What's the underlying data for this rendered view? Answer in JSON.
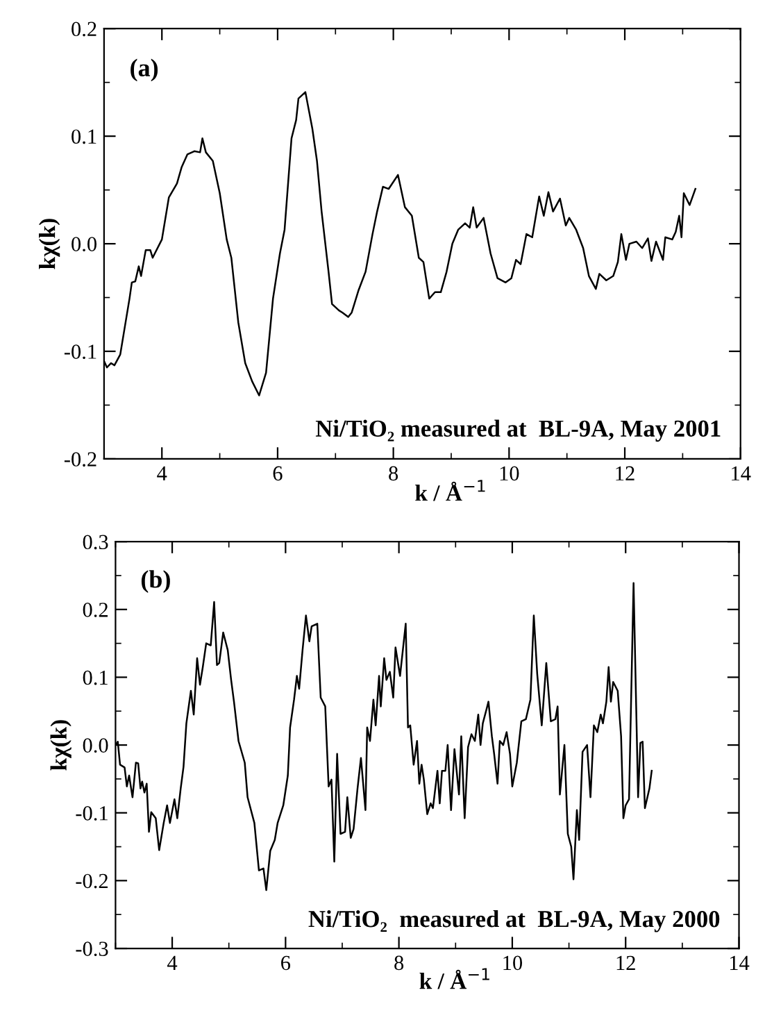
{
  "chart_data": [
    {
      "type": "line",
      "xlabel": "k / Å$^{−1}$",
      "ylabel": "kχ(k)",
      "annotations": [
        "(a)",
        "Ni/TiO₂ measured at  BL-9A, May 2001"
      ],
      "xlim": [
        3,
        14
      ],
      "xticks": [
        {
          "value": 4,
          "label": "4"
        },
        {
          "value": 6,
          "label": "6"
        },
        {
          "value": 8,
          "label": "8"
        },
        {
          "value": 10,
          "label": "10"
        },
        {
          "value": 12,
          "label": "12"
        },
        {
          "value": 14,
          "label": "14"
        }
      ],
      "ylim": [
        -0.2,
        0.2
      ],
      "yticks": [
        {
          "value": -0.2,
          "label": "-0.2"
        },
        {
          "value": -0.1,
          "label": "-0.1"
        },
        {
          "value": 0,
          "label": "0.0"
        },
        {
          "value": 0.1,
          "label": "0.1"
        },
        {
          "value": 0.2,
          "label": "0.2"
        }
      ],
      "series": [
        {
          "color": "#000000",
          "x": [
            3.0,
            3.05,
            3.12,
            3.18,
            3.28,
            3.36,
            3.44,
            3.48,
            3.54,
            3.6,
            3.64,
            3.72,
            3.8,
            3.84,
            4.0,
            4.12,
            4.26,
            4.34,
            4.44,
            4.56,
            4.66,
            4.7,
            4.76,
            4.88,
            5.0,
            5.12,
            5.2,
            5.32,
            5.44,
            5.56,
            5.68,
            5.8,
            5.92,
            6.04,
            6.12,
            6.24,
            6.32,
            6.36,
            6.48,
            6.6,
            6.68,
            6.76,
            6.88,
            6.94,
            7.06,
            7.12,
            7.22,
            7.28,
            7.4,
            7.52,
            7.64,
            7.72,
            7.82,
            7.92,
            8.08,
            8.2,
            8.32,
            8.44,
            8.52,
            8.62,
            8.72,
            8.82,
            8.92,
            9.02,
            9.12,
            9.24,
            9.32,
            9.38,
            9.44,
            9.56,
            9.68,
            9.8,
            9.94,
            10.04,
            10.12,
            10.2,
            10.3,
            10.4,
            10.52,
            10.6,
            10.68,
            10.76,
            10.88,
            10.98,
            11.04,
            11.16,
            11.28,
            11.38,
            11.5,
            11.56,
            11.68,
            11.8,
            11.88,
            11.94,
            12.02,
            12.08,
            12.2,
            12.3,
            12.4,
            12.46,
            12.54,
            12.66,
            12.7,
            12.82,
            12.88,
            12.94,
            12.98,
            13.02,
            13.12,
            13.22
          ],
          "values": [
            -0.109,
            -0.115,
            -0.111,
            -0.113,
            -0.103,
            -0.077,
            -0.051,
            -0.036,
            -0.035,
            -0.021,
            -0.03,
            -0.006,
            -0.006,
            -0.013,
            0.004,
            0.043,
            0.056,
            0.071,
            0.083,
            0.086,
            0.085,
            0.098,
            0.085,
            0.077,
            0.047,
            0.004,
            -0.013,
            -0.073,
            -0.111,
            -0.128,
            -0.141,
            -0.12,
            -0.051,
            -0.009,
            0.013,
            0.098,
            0.115,
            0.135,
            0.141,
            0.107,
            0.077,
            0.03,
            -0.026,
            -0.056,
            -0.062,
            -0.064,
            -0.068,
            -0.064,
            -0.043,
            -0.026,
            0.009,
            0.03,
            0.053,
            0.051,
            0.064,
            0.034,
            0.026,
            -0.013,
            -0.017,
            -0.051,
            -0.045,
            -0.045,
            -0.026,
            0.0,
            0.013,
            0.019,
            0.015,
            0.034,
            0.015,
            0.024,
            -0.009,
            -0.032,
            -0.036,
            -0.032,
            -0.015,
            -0.019,
            0.009,
            0.006,
            0.044,
            0.026,
            0.048,
            0.03,
            0.042,
            0.017,
            0.024,
            0.013,
            -0.004,
            -0.03,
            -0.042,
            -0.028,
            -0.034,
            -0.03,
            -0.017,
            0.009,
            -0.015,
            0.0,
            0.002,
            -0.004,
            0.005,
            -0.016,
            0.002,
            -0.015,
            0.006,
            0.004,
            0.011,
            0.026,
            0.006,
            0.047,
            0.036,
            0.051
          ]
        }
      ]
    },
    {
      "type": "line",
      "xlabel": "k / Å$^{−1}$",
      "ylabel": "kχ(k)",
      "annotations": [
        "(b)",
        "Ni/TiO₂  measured at  BL-9A, May 2000"
      ],
      "xlim": [
        3,
        14
      ],
      "xticks": [
        {
          "value": 4,
          "label": "4"
        },
        {
          "value": 6,
          "label": "6"
        },
        {
          "value": 8,
          "label": "8"
        },
        {
          "value": 10,
          "label": "10"
        },
        {
          "value": 12,
          "label": "12"
        },
        {
          "value": 14,
          "label": "14"
        }
      ],
      "ylim": [
        -0.3,
        0.3
      ],
      "yticks": [
        {
          "value": -0.3,
          "label": "-0.3"
        },
        {
          "value": -0.2,
          "label": "-0.2"
        },
        {
          "value": -0.1,
          "label": "-0.1"
        },
        {
          "value": 0,
          "label": "0.0"
        },
        {
          "value": 0.1,
          "label": "0.1"
        },
        {
          "value": 0.2,
          "label": "0.2"
        },
        {
          "value": 0.3,
          "label": "0.3"
        }
      ],
      "series": [
        {
          "color": "#000000",
          "x": [
            3.0,
            3.04,
            3.08,
            3.16,
            3.2,
            3.24,
            3.3,
            3.36,
            3.4,
            3.44,
            3.47,
            3.51,
            3.55,
            3.59,
            3.63,
            3.71,
            3.77,
            3.85,
            3.91,
            3.96,
            4.04,
            4.09,
            4.15,
            4.2,
            4.25,
            4.33,
            4.38,
            4.44,
            4.49,
            4.54,
            4.6,
            4.68,
            4.74,
            4.79,
            4.83,
            4.9,
            4.98,
            5.04,
            5.09,
            5.17,
            5.28,
            5.33,
            5.45,
            5.53,
            5.61,
            5.66,
            5.73,
            5.81,
            5.86,
            5.91,
            5.96,
            6.04,
            6.08,
            6.15,
            6.2,
            6.24,
            6.3,
            6.36,
            6.42,
            6.46,
            6.56,
            6.62,
            6.7,
            6.76,
            6.81,
            6.86,
            6.91,
            6.97,
            7.05,
            7.09,
            7.15,
            7.2,
            7.27,
            7.33,
            7.41,
            7.44,
            7.49,
            7.55,
            7.59,
            7.65,
            7.68,
            7.74,
            7.78,
            7.84,
            7.9,
            7.94,
            8.02,
            8.12,
            8.16,
            8.2,
            8.26,
            8.32,
            8.36,
            8.4,
            8.44,
            8.5,
            8.56,
            8.6,
            8.68,
            8.72,
            8.76,
            8.82,
            8.86,
            8.92,
            8.98,
            9.06,
            9.1,
            9.16,
            9.22,
            9.28,
            9.34,
            9.4,
            9.44,
            9.48,
            9.54,
            9.58,
            9.64,
            9.68,
            9.74,
            9.78,
            9.84,
            9.9,
            9.96,
            10.0,
            10.08,
            10.16,
            10.24,
            10.32,
            10.38,
            10.44,
            10.52,
            10.6,
            10.68,
            10.76,
            10.8,
            10.84,
            10.92,
            10.98,
            11.04,
            11.08,
            11.14,
            11.18,
            11.24,
            11.32,
            11.38,
            11.44,
            11.5,
            11.56,
            11.6,
            11.66,
            11.7,
            11.74,
            11.78,
            11.86,
            11.92,
            11.96,
            12.0,
            12.06,
            12.14,
            12.22,
            12.26,
            12.3,
            12.34,
            12.42,
            12.46
          ],
          "values": [
            0.0,
            0.005,
            -0.029,
            -0.033,
            -0.061,
            -0.045,
            -0.077,
            -0.026,
            -0.027,
            -0.064,
            -0.054,
            -0.07,
            -0.057,
            -0.128,
            -0.099,
            -0.108,
            -0.155,
            -0.115,
            -0.089,
            -0.115,
            -0.08,
            -0.108,
            -0.064,
            -0.032,
            0.032,
            0.08,
            0.045,
            0.128,
            0.089,
            0.115,
            0.15,
            0.147,
            0.211,
            0.118,
            0.121,
            0.166,
            0.14,
            0.096,
            0.064,
            0.006,
            -0.026,
            -0.077,
            -0.115,
            -0.185,
            -0.182,
            -0.214,
            -0.156,
            -0.14,
            -0.115,
            -0.102,
            -0.089,
            -0.045,
            0.026,
            0.067,
            0.102,
            0.083,
            0.14,
            0.191,
            0.153,
            0.175,
            0.179,
            0.07,
            0.057,
            -0.061,
            -0.051,
            -0.172,
            -0.013,
            -0.131,
            -0.128,
            -0.077,
            -0.137,
            -0.124,
            -0.064,
            -0.019,
            -0.096,
            0.026,
            0.006,
            0.067,
            0.029,
            0.102,
            0.057,
            0.128,
            0.096,
            0.108,
            0.07,
            0.144,
            0.102,
            0.179,
            0.026,
            0.029,
            -0.029,
            0.006,
            -0.057,
            -0.029,
            -0.051,
            -0.102,
            -0.086,
            -0.093,
            -0.038,
            -0.086,
            -0.038,
            -0.038,
            0.0,
            -0.096,
            -0.006,
            -0.073,
            0.013,
            -0.108,
            -0.003,
            0.016,
            0.006,
            0.045,
            0.0,
            0.032,
            0.051,
            0.064,
            0.013,
            -0.013,
            -0.057,
            0.006,
            0.0,
            0.019,
            -0.013,
            -0.061,
            -0.026,
            0.035,
            0.038,
            0.067,
            0.191,
            0.105,
            0.029,
            0.121,
            0.035,
            0.038,
            0.057,
            -0.073,
            0.0,
            -0.131,
            -0.15,
            -0.198,
            -0.096,
            -0.14,
            -0.01,
            0.0,
            -0.077,
            0.029,
            0.019,
            0.045,
            0.032,
            0.064,
            0.115,
            0.064,
            0.093,
            0.08,
            0.013,
            -0.108,
            -0.089,
            -0.08,
            0.239,
            -0.077,
            0.003,
            0.005,
            -0.093,
            -0.064,
            -0.038
          ]
        }
      ]
    }
  ]
}
